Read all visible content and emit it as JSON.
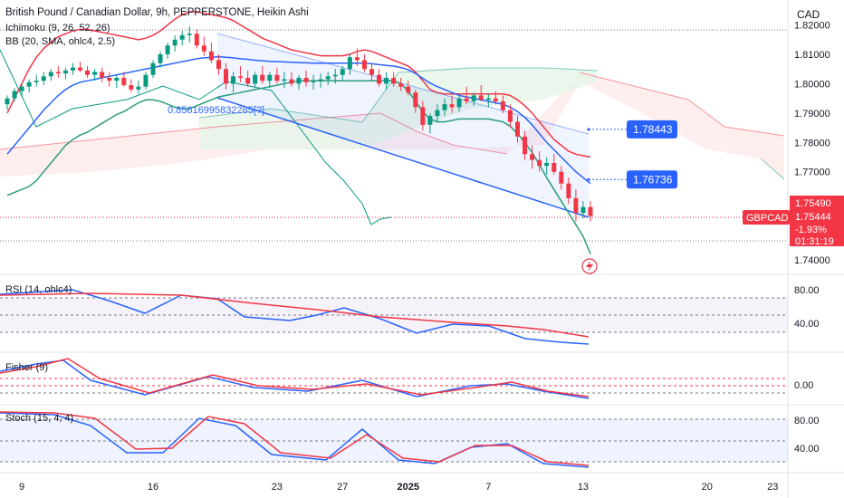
{
  "header": {
    "title": "British Pound / Canadian Dollar, 9h, PEPPERSTONE, Heikin Ashi",
    "ichimoku": "Ichimoku (9, 26, 52, 26)",
    "bb": "BB (20, SMA, ohlc4, 2.5)",
    "currency": "CAD"
  },
  "colors": {
    "up": "#089981",
    "down": "#f23645",
    "bb_band": "#f23645",
    "bb_basis": "#2962ff",
    "kumo_up": "#e8f5e9",
    "kumo_down": "#fde8e8",
    "rsi": "#2962ff",
    "rsi_ma": "#f23645",
    "price_tag": "#f23645",
    "marker": "#2962ff"
  },
  "annotation": "0.85616995832285[?]",
  "markers": [
    {
      "label": "1.78443",
      "value": 1.78443
    },
    {
      "label": "1.76736",
      "value": 1.76736
    }
  ],
  "price_tag": {
    "symbol": "GBPCAD",
    "price_a": "1.75490",
    "price_b": "1.75444",
    "change": "-1.93%",
    "timer": "01:31:19"
  },
  "panes": {
    "rsi": {
      "label": "RSI (14, ohlc4)",
      "ticks": [
        "80.00",
        "40.00"
      ]
    },
    "fisher": {
      "label": "Fisher (9)",
      "ticks": [
        "0.00"
      ]
    },
    "stoch": {
      "label": "Stoch (15, 4, 4)",
      "ticks": [
        "80.00",
        "40.00"
      ]
    }
  },
  "chart_data": {
    "type": "candlestick",
    "y_ticks": [
      "1.82000",
      "1.81000",
      "1.80000",
      "1.79000",
      "1.78000",
      "1.77000",
      "1.74000"
    ],
    "ylim": [
      1.736,
      1.8285
    ],
    "x_ticks": [
      {
        "label": "9",
        "idx": 2
      },
      {
        "label": "16",
        "idx": 20
      },
      {
        "label": "23",
        "idx": 37
      },
      {
        "label": "27",
        "idx": 46
      },
      {
        "label": "2025",
        "idx": 55
      },
      {
        "label": "7",
        "idx": 66
      },
      {
        "label": "13",
        "idx": 79
      },
      {
        "label": "20",
        "idx": 96
      },
      {
        "label": "23",
        "idx": 105
      }
    ],
    "candles": [
      [
        1.793,
        1.796,
        1.791,
        1.795
      ],
      [
        1.795,
        1.7985,
        1.794,
        1.7975
      ],
      [
        1.7975,
        1.8,
        1.7955,
        1.799
      ],
      [
        1.799,
        1.8015,
        1.797,
        1.8005
      ],
      [
        1.8005,
        1.803,
        1.799,
        1.801
      ],
      [
        1.801,
        1.804,
        1.7995,
        1.8025
      ],
      [
        1.8025,
        1.805,
        1.801,
        1.804
      ],
      [
        1.804,
        1.806,
        1.802,
        1.8035
      ],
      [
        1.8035,
        1.8055,
        1.8015,
        1.8045
      ],
      [
        1.8045,
        1.807,
        1.803,
        1.8055
      ],
      [
        1.8055,
        1.8075,
        1.804,
        1.8045
      ],
      [
        1.8045,
        1.806,
        1.802,
        1.803
      ],
      [
        1.803,
        1.805,
        1.801,
        1.804
      ],
      [
        1.804,
        1.8055,
        1.8005,
        1.802
      ],
      [
        1.802,
        1.804,
        1.799,
        1.801
      ],
      [
        1.801,
        1.803,
        1.7985,
        1.802
      ],
      [
        1.802,
        1.804,
        1.799,
        1.7995
      ],
      [
        1.7995,
        1.8015,
        1.797,
        1.798
      ],
      [
        1.798,
        1.801,
        1.7965,
        1.799
      ],
      [
        1.799,
        1.804,
        1.798,
        1.803
      ],
      [
        1.803,
        1.808,
        1.802,
        1.807
      ],
      [
        1.807,
        1.811,
        1.8055,
        1.81
      ],
      [
        1.81,
        1.814,
        1.8085,
        1.813
      ],
      [
        1.813,
        1.8165,
        1.811,
        1.815
      ],
      [
        1.815,
        1.818,
        1.813,
        1.8165
      ],
      [
        1.8165,
        1.8195,
        1.814,
        1.817
      ],
      [
        1.817,
        1.8185,
        1.812,
        1.813
      ],
      [
        1.813,
        1.816,
        1.8095,
        1.811
      ],
      [
        1.811,
        1.814,
        1.807,
        1.808
      ],
      [
        1.808,
        1.81,
        1.803,
        1.805
      ],
      [
        1.805,
        1.807,
        1.798,
        1.8
      ],
      [
        1.8,
        1.804,
        1.797,
        1.8025
      ],
      [
        1.8025,
        1.806,
        1.8005,
        1.802
      ],
      [
        1.802,
        1.8045,
        1.799,
        1.8
      ],
      [
        1.8,
        1.804,
        1.7985,
        1.803
      ],
      [
        1.803,
        1.806,
        1.8,
        1.801
      ],
      [
        1.801,
        1.804,
        1.7985,
        1.803
      ],
      [
        1.803,
        1.8055,
        1.8,
        1.801
      ],
      [
        1.801,
        1.804,
        1.7985,
        1.8015
      ],
      [
        1.8015,
        1.804,
        1.799,
        1.8
      ],
      [
        1.8,
        1.803,
        1.798,
        1.802
      ],
      [
        1.802,
        1.8045,
        1.799,
        1.8005
      ],
      [
        1.8005,
        1.803,
        1.798,
        1.801
      ],
      [
        1.801,
        1.8035,
        1.7985,
        1.8015
      ],
      [
        1.8015,
        1.804,
        1.7995,
        1.8025
      ],
      [
        1.8025,
        1.805,
        1.8,
        1.803
      ],
      [
        1.803,
        1.806,
        1.801,
        1.805
      ],
      [
        1.805,
        1.81,
        1.803,
        1.809
      ],
      [
        1.809,
        1.812,
        1.806,
        1.808
      ],
      [
        1.808,
        1.81,
        1.804,
        1.805
      ],
      [
        1.805,
        1.807,
        1.801,
        1.803
      ],
      [
        1.803,
        1.805,
        1.799,
        1.8
      ],
      [
        1.8,
        1.804,
        1.798,
        1.802
      ],
      [
        1.802,
        1.804,
        1.799,
        1.8
      ],
      [
        1.8,
        1.802,
        1.7975,
        1.799
      ],
      [
        1.799,
        1.801,
        1.796,
        1.797
      ],
      [
        1.797,
        1.798,
        1.79,
        1.792
      ],
      [
        1.792,
        1.794,
        1.784,
        1.786
      ],
      [
        1.786,
        1.79,
        1.783,
        1.789
      ],
      [
        1.789,
        1.793,
        1.787,
        1.791
      ],
      [
        1.791,
        1.795,
        1.789,
        1.793
      ],
      [
        1.793,
        1.796,
        1.79,
        1.792
      ],
      [
        1.792,
        1.796,
        1.7905,
        1.795
      ],
      [
        1.795,
        1.799,
        1.793,
        1.794
      ],
      [
        1.794,
        1.797,
        1.7925,
        1.796
      ],
      [
        1.796,
        1.7995,
        1.794,
        1.7945
      ],
      [
        1.7945,
        1.7965,
        1.792,
        1.795
      ],
      [
        1.795,
        1.7975,
        1.793,
        1.794
      ],
      [
        1.794,
        1.796,
        1.79,
        1.791
      ],
      [
        1.791,
        1.793,
        1.785,
        1.787
      ],
      [
        1.787,
        1.789,
        1.78,
        1.782
      ],
      [
        1.782,
        1.784,
        1.774,
        1.776
      ],
      [
        1.776,
        1.779,
        1.771,
        1.774
      ],
      [
        1.774,
        1.777,
        1.77,
        1.772
      ],
      [
        1.772,
        1.775,
        1.769,
        1.773
      ],
      [
        1.773,
        1.776,
        1.769,
        1.77
      ],
      [
        1.77,
        1.772,
        1.764,
        1.766
      ],
      [
        1.766,
        1.768,
        1.759,
        1.761
      ],
      [
        1.761,
        1.764,
        1.753,
        1.756
      ],
      [
        1.756,
        1.76,
        1.754,
        1.758
      ],
      [
        1.758,
        1.76,
        1.753,
        1.7549
      ]
    ],
    "bb_upper": [
      1.79,
      1.795,
      1.8,
      1.805,
      1.809,
      1.812,
      1.814,
      1.816,
      1.817,
      1.818,
      1.8185,
      1.8185,
      1.818,
      1.8175,
      1.817,
      1.8165,
      1.816,
      1.8155,
      1.815,
      1.8155,
      1.8165,
      1.818,
      1.82,
      1.822,
      1.8235,
      1.8245,
      1.8245,
      1.824,
      1.8235,
      1.823,
      1.8225,
      1.8215,
      1.82,
      1.8185,
      1.817,
      1.8155,
      1.8145,
      1.8135,
      1.8125,
      1.8115,
      1.811,
      1.8105,
      1.81,
      1.8095,
      1.8095,
      1.8095,
      1.8095,
      1.81,
      1.811,
      1.8115,
      1.811,
      1.81,
      1.809,
      1.808,
      1.807,
      1.806,
      1.804,
      1.801,
      1.798,
      1.797,
      1.7965,
      1.7965,
      1.7965,
      1.7965,
      1.7965,
      1.7965,
      1.7965,
      1.7965,
      1.7965,
      1.796,
      1.7945,
      1.7925,
      1.79,
      1.787,
      1.784,
      1.781,
      1.779,
      1.777,
      1.776,
      1.7755,
      1.775
    ],
    "bb_basis": [
      1.776,
      1.779,
      1.782,
      1.785,
      1.788,
      1.791,
      1.7935,
      1.796,
      1.798,
      1.7995,
      1.8005,
      1.801,
      1.8015,
      1.802,
      1.8025,
      1.803,
      1.8035,
      1.804,
      1.8045,
      1.805,
      1.8055,
      1.806,
      1.8065,
      1.807,
      1.8075,
      1.808,
      1.8085,
      1.8088,
      1.809,
      1.8092,
      1.809,
      1.8088,
      1.8085,
      1.8083,
      1.808,
      1.8078,
      1.8076,
      1.8075,
      1.8074,
      1.8073,
      1.8072,
      1.8071,
      1.807,
      1.807,
      1.807,
      1.807,
      1.807,
      1.807,
      1.807,
      1.807,
      1.8068,
      1.8065,
      1.8062,
      1.806,
      1.8055,
      1.8048,
      1.8035,
      1.8018,
      1.8002,
      1.799,
      1.798,
      1.797,
      1.796,
      1.7955,
      1.795,
      1.7945,
      1.794,
      1.7935,
      1.793,
      1.792,
      1.7905,
      1.7885,
      1.786,
      1.783,
      1.78,
      1.7775,
      1.775,
      1.7725,
      1.77,
      1.768,
      1.766
    ],
    "bb_lower": [
      1.762,
      1.763,
      1.764,
      1.765,
      1.767,
      1.77,
      1.773,
      1.776,
      1.779,
      1.781,
      1.7825,
      1.7835,
      1.785,
      1.7865,
      1.788,
      1.7895,
      1.7905,
      1.792,
      1.7935,
      1.7945,
      1.7945,
      1.794,
      1.793,
      1.792,
      1.7915,
      1.7915,
      1.7925,
      1.7935,
      1.7945,
      1.7955,
      1.796,
      1.7965,
      1.797,
      1.7975,
      1.798,
      1.7985,
      1.799,
      1.7995,
      1.8,
      1.8005,
      1.801,
      1.801,
      1.801,
      1.801,
      1.801,
      1.801,
      1.801,
      1.801,
      1.801,
      1.801,
      1.801,
      1.801,
      1.801,
      1.801,
      1.8,
      1.7975,
      1.794,
      1.7905,
      1.788,
      1.787,
      1.787,
      1.7875,
      1.788,
      1.788,
      1.788,
      1.788,
      1.788,
      1.7875,
      1.787,
      1.7855,
      1.783,
      1.78,
      1.7765,
      1.7725,
      1.768,
      1.764,
      1.76,
      1.756,
      1.752,
      1.748,
      1.742
    ]
  }
}
